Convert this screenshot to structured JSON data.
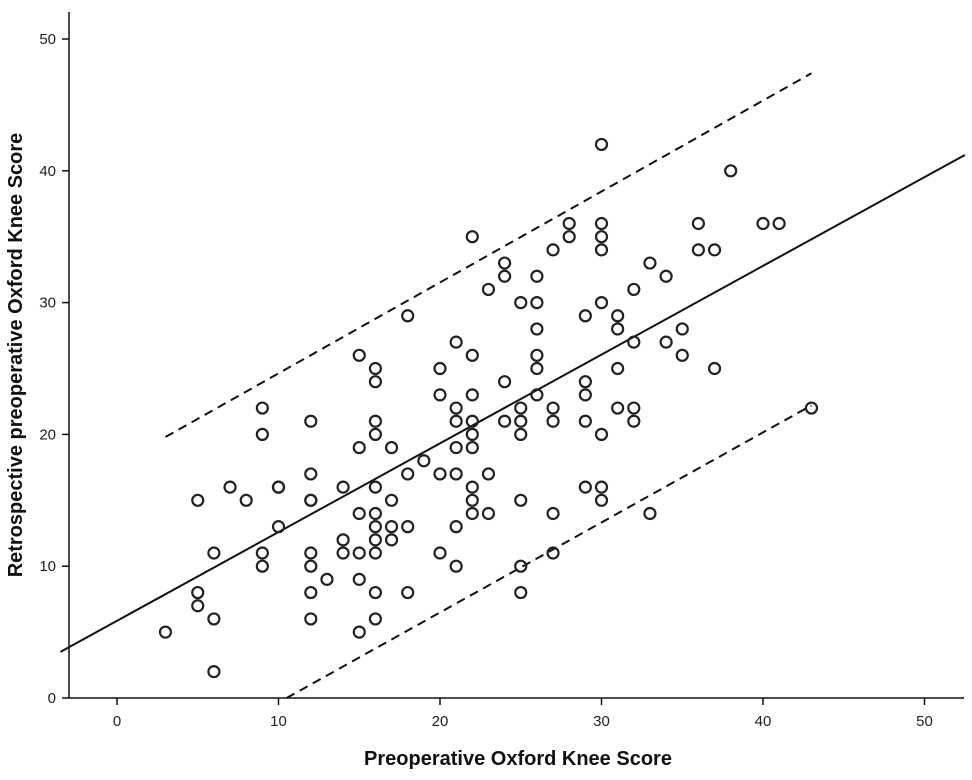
{
  "chart_data": {
    "type": "scatter",
    "xlabel": "Preoperative Oxford Knee Score",
    "ylabel": "Retrospective preoperative Oxford Knee Score",
    "xlim": [
      -3.5,
      52.5
    ],
    "ylim": [
      0,
      52
    ],
    "x_ticks": [
      0,
      10,
      20,
      30,
      40,
      50
    ],
    "y_ticks": [
      0,
      10,
      20,
      30,
      40,
      50
    ],
    "grid": false,
    "legend": "none",
    "colors": {
      "points": "#222222",
      "lines": "#111111"
    },
    "regression_line": {
      "x": [
        -3.5,
        52.5
      ],
      "y": [
        3.5,
        41.2
      ],
      "style": "solid"
    },
    "upper_limit_line": {
      "x": [
        3,
        43
      ],
      "y": [
        19.8,
        47.4
      ],
      "style": "dashed"
    },
    "lower_limit_line": {
      "x": [
        10.5,
        43
      ],
      "y": [
        0,
        22.2
      ],
      "style": "dashed"
    },
    "points": [
      [
        3,
        5
      ],
      [
        5,
        15
      ],
      [
        5,
        8
      ],
      [
        5,
        7
      ],
      [
        6,
        11
      ],
      [
        6,
        6
      ],
      [
        6,
        2
      ],
      [
        7,
        16
      ],
      [
        8,
        15
      ],
      [
        9,
        22
      ],
      [
        9,
        20
      ],
      [
        9,
        11
      ],
      [
        9,
        10
      ],
      [
        10,
        16
      ],
      [
        10,
        16
      ],
      [
        10,
        13
      ],
      [
        12,
        21
      ],
      [
        12,
        17
      ],
      [
        12,
        15
      ],
      [
        12,
        15
      ],
      [
        12,
        11
      ],
      [
        12,
        10
      ],
      [
        12,
        8
      ],
      [
        12,
        6
      ],
      [
        13,
        9
      ],
      [
        14,
        16
      ],
      [
        14,
        12
      ],
      [
        14,
        11
      ],
      [
        15,
        26
      ],
      [
        15,
        19
      ],
      [
        15,
        14
      ],
      [
        15,
        11
      ],
      [
        15,
        9
      ],
      [
        15,
        5
      ],
      [
        16,
        25
      ],
      [
        16,
        24
      ],
      [
        16,
        21
      ],
      [
        16,
        20
      ],
      [
        16,
        16
      ],
      [
        16,
        14
      ],
      [
        16,
        13
      ],
      [
        16,
        12
      ],
      [
        16,
        11
      ],
      [
        16,
        8
      ],
      [
        16,
        6
      ],
      [
        17,
        19
      ],
      [
        17,
        15
      ],
      [
        17,
        13
      ],
      [
        17,
        12
      ],
      [
        18,
        29
      ],
      [
        18,
        17
      ],
      [
        18,
        13
      ],
      [
        18,
        8
      ],
      [
        19,
        18
      ],
      [
        20,
        25
      ],
      [
        20,
        23
      ],
      [
        20,
        17
      ],
      [
        20,
        11
      ],
      [
        21,
        27
      ],
      [
        21,
        22
      ],
      [
        21,
        21
      ],
      [
        21,
        19
      ],
      [
        21,
        17
      ],
      [
        21,
        13
      ],
      [
        21,
        10
      ],
      [
        22,
        35
      ],
      [
        22,
        26
      ],
      [
        22,
        23
      ],
      [
        22,
        21
      ],
      [
        22,
        20
      ],
      [
        22,
        19
      ],
      [
        22,
        16
      ],
      [
        22,
        15
      ],
      [
        22,
        14
      ],
      [
        23,
        31
      ],
      [
        23,
        17
      ],
      [
        23,
        14
      ],
      [
        24,
        33
      ],
      [
        24,
        32
      ],
      [
        24,
        24
      ],
      [
        24,
        21
      ],
      [
        25,
        30
      ],
      [
        25,
        22
      ],
      [
        25,
        21
      ],
      [
        25,
        20
      ],
      [
        25,
        15
      ],
      [
        25,
        10
      ],
      [
        25,
        8
      ],
      [
        26,
        32
      ],
      [
        26,
        30
      ],
      [
        26,
        28
      ],
      [
        26,
        26
      ],
      [
        26,
        25
      ],
      [
        26,
        23
      ],
      [
        27,
        34
      ],
      [
        27,
        22
      ],
      [
        27,
        21
      ],
      [
        27,
        14
      ],
      [
        27,
        11
      ],
      [
        28,
        36
      ],
      [
        28,
        35
      ],
      [
        29,
        29
      ],
      [
        29,
        24
      ],
      [
        29,
        23
      ],
      [
        29,
        21
      ],
      [
        29,
        16
      ],
      [
        30,
        42
      ],
      [
        30,
        36
      ],
      [
        30,
        35
      ],
      [
        30,
        34
      ],
      [
        30,
        30
      ],
      [
        30,
        20
      ],
      [
        30,
        16
      ],
      [
        30,
        15
      ],
      [
        31,
        29
      ],
      [
        31,
        28
      ],
      [
        31,
        25
      ],
      [
        31,
        22
      ],
      [
        32,
        31
      ],
      [
        32,
        27
      ],
      [
        32,
        22
      ],
      [
        32,
        21
      ],
      [
        33,
        33
      ],
      [
        33,
        14
      ],
      [
        34,
        32
      ],
      [
        34,
        27
      ],
      [
        35,
        28
      ],
      [
        35,
        26
      ],
      [
        36,
        36
      ],
      [
        36,
        34
      ],
      [
        37,
        34
      ],
      [
        37,
        25
      ],
      [
        38,
        40
      ],
      [
        40,
        36
      ],
      [
        41,
        36
      ],
      [
        43,
        22
      ]
    ]
  }
}
